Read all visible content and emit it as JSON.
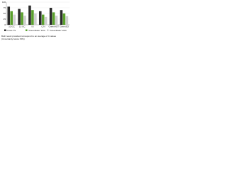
{
  "chart_data": {
    "type": "bar",
    "categories": [
      "10 GC",
      "15 GC",
      "IO",
      "C/N",
      "GreenAOT",
      "GreenSO"
    ],
    "series": [
      {
        "name": "Gross TS",
        "color": "#2b2b2b",
        "values": [
          80,
          70,
          85,
          60,
          75,
          65
        ]
      },
      {
        "name": "\"GreenRatio\" 10%",
        "color": "#5aa02c",
        "values": [
          60,
          55,
          65,
          45,
          55,
          50
        ]
      },
      {
        "name": "\"GreenRatio\" 20%",
        "color": "#cfcfcf",
        "values": [
          45,
          40,
          50,
          35,
          40,
          38
        ]
      }
    ],
    "ylim": [
      0,
      100
    ],
    "yticks": [
      0,
      25,
      50,
      75,
      100
    ],
    "grid": true,
    "annotations": [
      "Both result provided correspond to an average of 4 values",
      "(Uncertainty below ±5%)"
    ]
  }
}
